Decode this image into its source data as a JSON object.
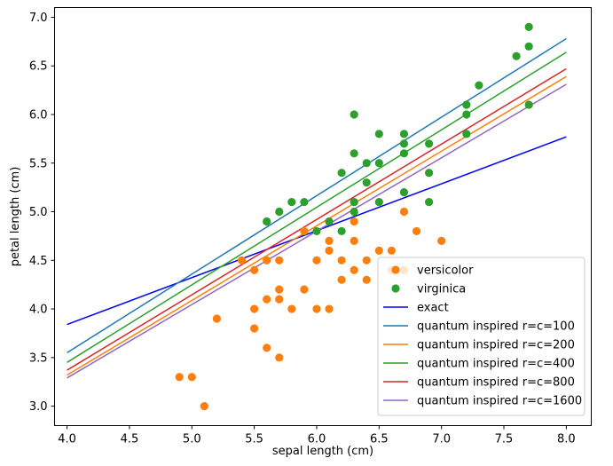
{
  "chart_data": {
    "type": "scatter",
    "xlabel": "sepal length (cm)",
    "ylabel": "petal length (cm)",
    "xlim": [
      3.9,
      8.2
    ],
    "ylim": [
      2.8,
      7.1
    ],
    "xticks": [
      "4.0",
      "4.5",
      "5.0",
      "5.5",
      "6.0",
      "6.5",
      "7.0",
      "7.5",
      "8.0"
    ],
    "yticks": [
      "3.0",
      "3.5",
      "4.0",
      "4.5",
      "5.0",
      "5.5",
      "6.0",
      "6.5",
      "7.0"
    ],
    "grid": false,
    "legend_position": "lower-right",
    "scatter_series": [
      {
        "name": "versicolor",
        "color": "#ff7f0e",
        "points": [
          [
            4.9,
            3.3
          ],
          [
            5.0,
            3.3
          ],
          [
            5.1,
            3.0
          ],
          [
            5.2,
            3.9
          ],
          [
            5.4,
            4.5
          ],
          [
            5.5,
            4.4
          ],
          [
            5.5,
            4.0
          ],
          [
            5.5,
            3.8
          ],
          [
            5.6,
            4.5
          ],
          [
            5.6,
            4.1
          ],
          [
            5.6,
            3.6
          ],
          [
            5.7,
            4.5
          ],
          [
            5.7,
            4.2
          ],
          [
            5.7,
            4.1
          ],
          [
            5.7,
            3.5
          ],
          [
            5.8,
            4.0
          ],
          [
            5.9,
            4.8
          ],
          [
            5.9,
            4.2
          ],
          [
            6.0,
            4.5
          ],
          [
            6.0,
            4.0
          ],
          [
            6.1,
            4.7
          ],
          [
            6.1,
            4.6
          ],
          [
            6.1,
            4.0
          ],
          [
            6.2,
            4.5
          ],
          [
            6.2,
            4.3
          ],
          [
            6.3,
            4.9
          ],
          [
            6.3,
            4.7
          ],
          [
            6.3,
            4.4
          ],
          [
            6.4,
            4.5
          ],
          [
            6.4,
            4.3
          ],
          [
            6.5,
            4.6
          ],
          [
            6.6,
            4.6
          ],
          [
            6.6,
            4.4
          ],
          [
            6.7,
            5.0
          ],
          [
            6.7,
            4.4
          ],
          [
            6.8,
            4.8
          ],
          [
            7.0,
            4.7
          ]
        ]
      },
      {
        "name": "virginica",
        "color": "#2ca02c",
        "points": [
          [
            5.6,
            4.9
          ],
          [
            5.7,
            5.0
          ],
          [
            5.8,
            5.1
          ],
          [
            5.9,
            5.1
          ],
          [
            6.0,
            4.8
          ],
          [
            6.1,
            4.9
          ],
          [
            6.2,
            5.4
          ],
          [
            6.2,
            4.8
          ],
          [
            6.3,
            6.0
          ],
          [
            6.3,
            5.6
          ],
          [
            6.3,
            5.1
          ],
          [
            6.3,
            5.0
          ],
          [
            6.4,
            5.5
          ],
          [
            6.4,
            5.3
          ],
          [
            6.5,
            5.8
          ],
          [
            6.5,
            5.5
          ],
          [
            6.5,
            5.1
          ],
          [
            6.7,
            5.8
          ],
          [
            6.7,
            5.7
          ],
          [
            6.7,
            5.6
          ],
          [
            6.7,
            5.2
          ],
          [
            6.9,
            5.7
          ],
          [
            6.9,
            5.4
          ],
          [
            6.9,
            5.1
          ],
          [
            7.2,
            6.1
          ],
          [
            7.2,
            6.0
          ],
          [
            7.2,
            5.8
          ],
          [
            7.3,
            6.3
          ],
          [
            7.6,
            6.6
          ],
          [
            7.7,
            6.9
          ],
          [
            7.7,
            6.7
          ],
          [
            7.7,
            6.1
          ]
        ]
      }
    ],
    "line_series": [
      {
        "name": "exact",
        "color": "#0000ff",
        "x": [
          4.0,
          8.0
        ],
        "y": [
          3.84,
          5.77
        ]
      },
      {
        "name": "quantum inspired r=c=100",
        "color": "#1f77b4",
        "x": [
          4.0,
          8.0
        ],
        "y": [
          3.55,
          6.78
        ]
      },
      {
        "name": "quantum inspired r=c=200",
        "color": "#ff7f0e",
        "x": [
          4.0,
          8.0
        ],
        "y": [
          3.32,
          6.39
        ]
      },
      {
        "name": "quantum inspired r=c=400",
        "color": "#2ca02c",
        "x": [
          4.0,
          8.0
        ],
        "y": [
          3.45,
          6.64
        ]
      },
      {
        "name": "quantum inspired r=c=800",
        "color": "#d62728",
        "x": [
          4.0,
          8.0
        ],
        "y": [
          3.37,
          6.47
        ]
      },
      {
        "name": "quantum inspired r=c=1600",
        "color": "#9467bd",
        "x": [
          4.0,
          8.0
        ],
        "y": [
          3.29,
          6.31
        ]
      }
    ]
  }
}
